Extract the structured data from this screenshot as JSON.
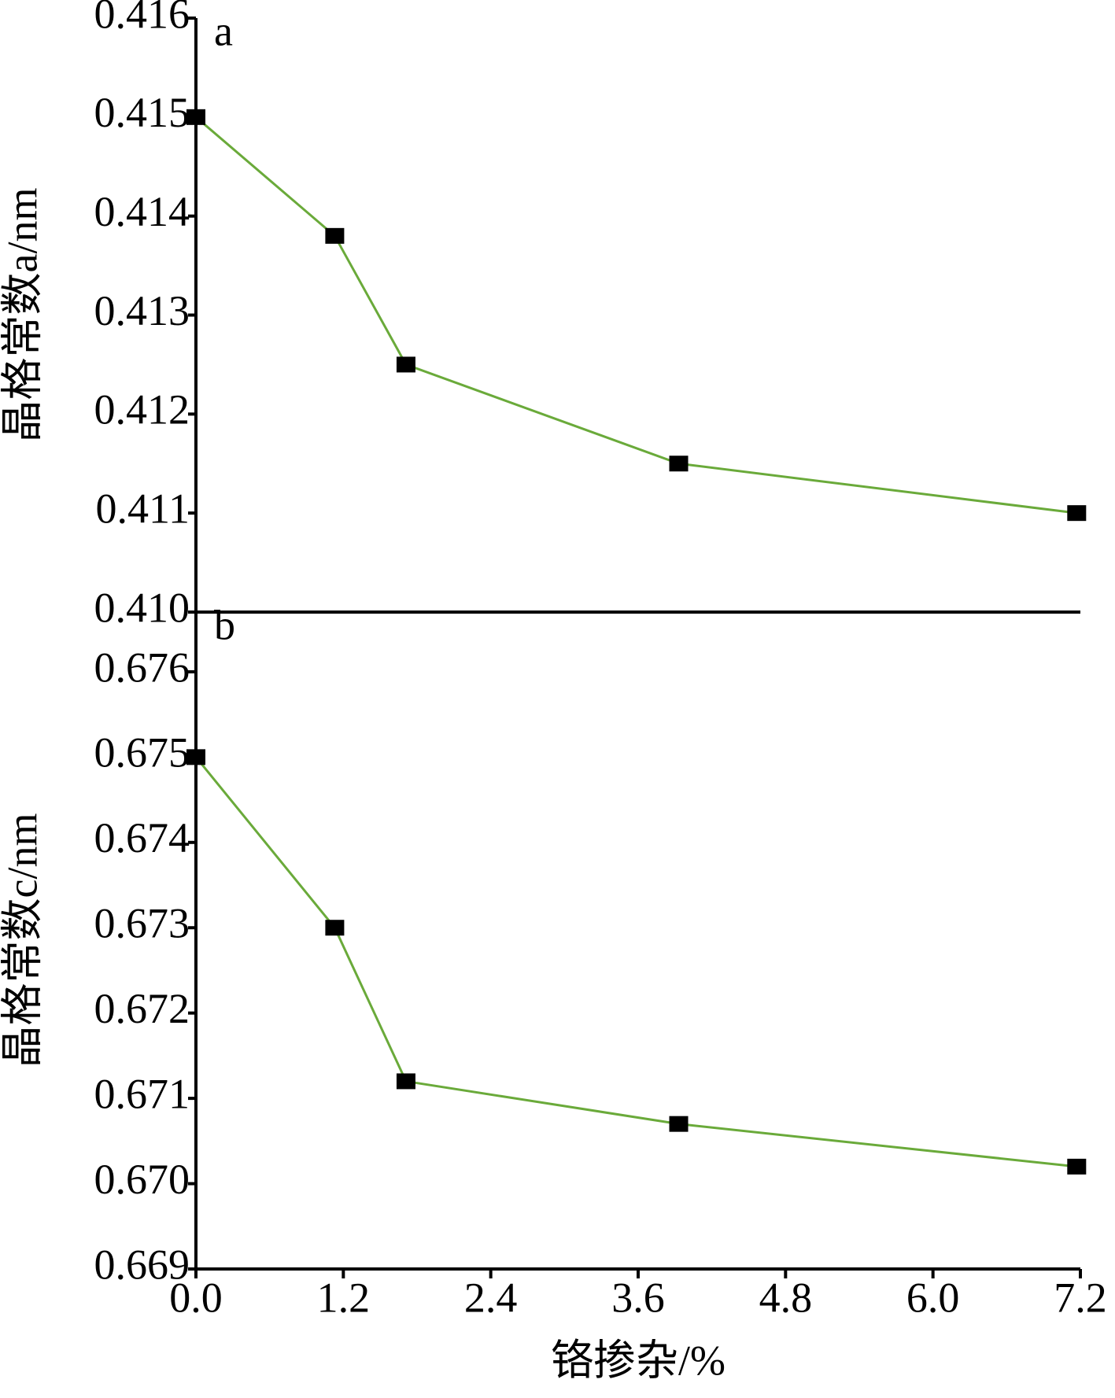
{
  "chart_data": [
    {
      "type": "line",
      "panel_label": "a",
      "ylabel": "晶格常数a/nm",
      "x": [
        0,
        1.13,
        1.71,
        3.93,
        7.17
      ],
      "series": [
        {
          "color": "#6aaa3a",
          "marker_color": "#000000",
          "values": [
            0.415,
            0.4138,
            0.4125,
            0.4115,
            0.411
          ]
        }
      ],
      "xlim": [
        0,
        7.2
      ],
      "ylim": [
        0.41,
        0.416
      ],
      "yticks": [
        {
          "value": 0.41,
          "label": "0.410"
        },
        0.411,
        0.412,
        0.413,
        0.414,
        0.415,
        0.416
      ]
    },
    {
      "type": "line",
      "panel_label": "b",
      "ylabel": "晶格常数c/nm",
      "xlabel": "铬掺杂/%",
      "x": [
        0,
        1.13,
        1.71,
        3.93,
        7.17
      ],
      "series": [
        {
          "color": "#6aaa3a",
          "marker_color": "#000000",
          "values": [
            0.675,
            0.673,
            0.6712,
            0.6707,
            0.6702
          ]
        }
      ],
      "xlim": [
        0,
        7.2
      ],
      "xticks": [
        {
          "value": 0,
          "label": "0.0"
        },
        1.2,
        2.4,
        3.6,
        4.8,
        {
          "value": 6,
          "label": "6.0"
        },
        7.2
      ],
      "ylim": [
        0.669,
        0.6767
      ],
      "yticks": [
        0.669,
        {
          "value": 0.67,
          "label": "0.670"
        },
        0.671,
        0.672,
        0.673,
        0.674,
        0.675,
        0.676
      ]
    }
  ]
}
